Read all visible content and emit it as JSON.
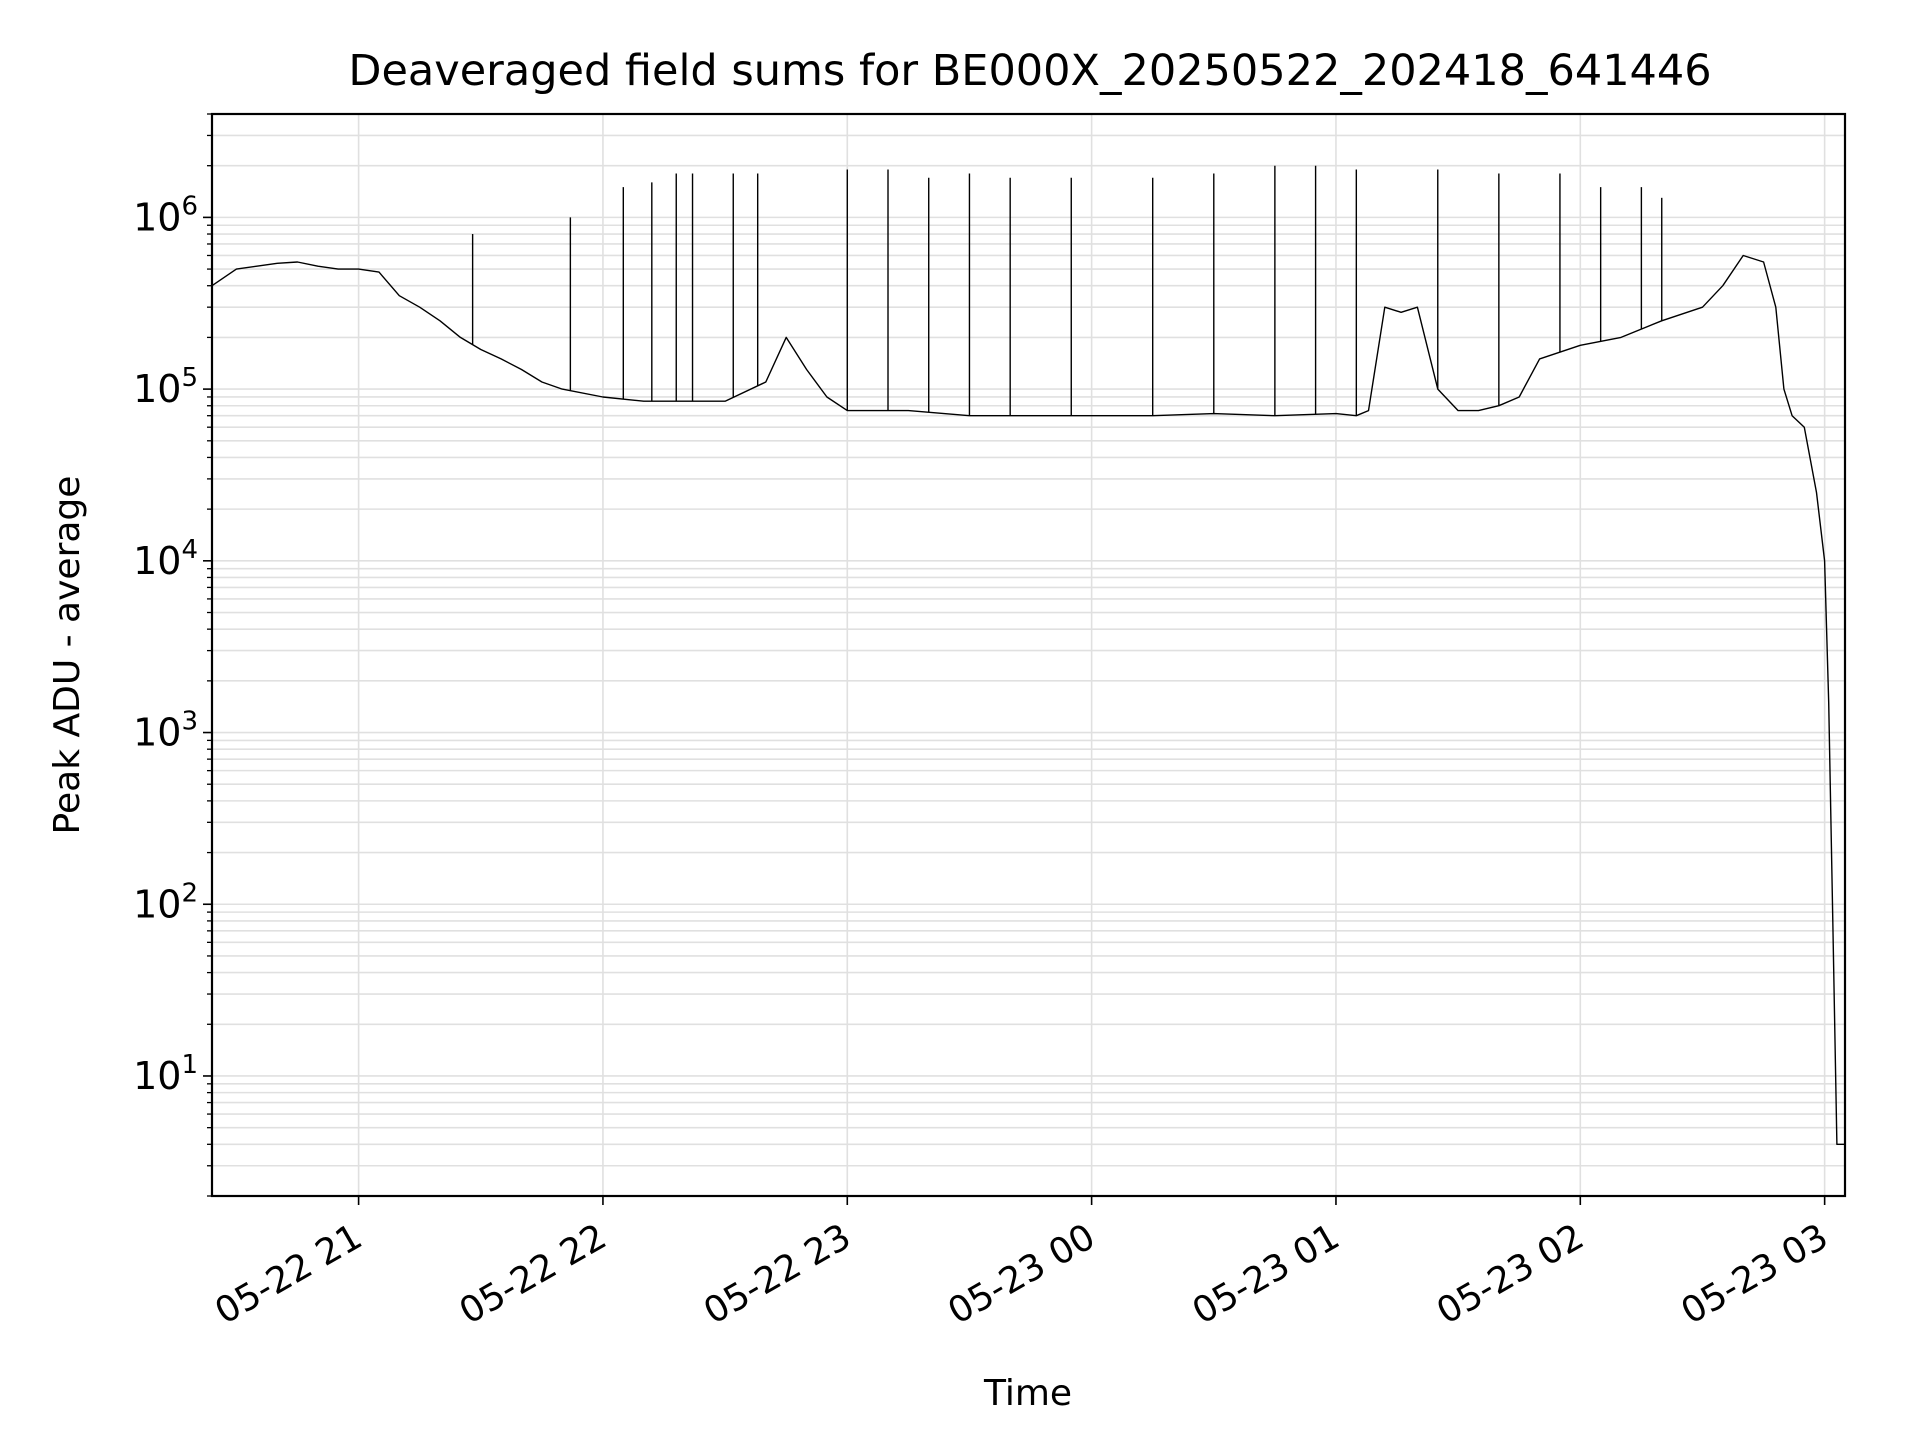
{
  "chart_data": {
    "type": "line",
    "title": "Deaveraged field sums for BE000X_20250522_202418_641446",
    "xlabel": "Time",
    "ylabel": "Peak ADU - average",
    "yscale": "log",
    "ylim": [
      2,
      4000000
    ],
    "xlim": [
      "2025-05-22 20:24",
      "2025-05-23 03:05"
    ],
    "grid": true,
    "line_color": "#000000",
    "grid_color": "#e0e0e0",
    "x_ticks": [
      {
        "time": "2025-05-22 21:00",
        "label": "05-22 21"
      },
      {
        "time": "2025-05-22 22:00",
        "label": "05-22 22"
      },
      {
        "time": "2025-05-22 23:00",
        "label": "05-22 23"
      },
      {
        "time": "2025-05-23 00:00",
        "label": "05-23 00"
      },
      {
        "time": "2025-05-23 01:00",
        "label": "05-23 01"
      },
      {
        "time": "2025-05-23 02:00",
        "label": "05-23 02"
      },
      {
        "time": "2025-05-23 03:00",
        "label": "05-23 03"
      }
    ],
    "y_ticks": [
      {
        "value": 10,
        "base": "10",
        "exp": "1"
      },
      {
        "value": 100,
        "base": "10",
        "exp": "2"
      },
      {
        "value": 1000,
        "base": "10",
        "exp": "3"
      },
      {
        "value": 10000,
        "base": "10",
        "exp": "4"
      },
      {
        "value": 100000,
        "base": "10",
        "exp": "5"
      },
      {
        "value": 1000000,
        "base": "10",
        "exp": "6"
      }
    ],
    "series": [
      {
        "x": [
          "2025-05-22 20:24",
          "2025-05-22 20:30",
          "2025-05-22 20:35",
          "2025-05-22 20:40",
          "2025-05-22 20:45",
          "2025-05-22 20:50",
          "2025-05-22 20:55",
          "2025-05-22 21:00",
          "2025-05-22 21:05",
          "2025-05-22 21:10",
          "2025-05-22 21:15",
          "2025-05-22 21:20",
          "2025-05-22 21:25",
          "2025-05-22 21:30",
          "2025-05-22 21:35",
          "2025-05-22 21:40",
          "2025-05-22 21:45",
          "2025-05-22 21:50",
          "2025-05-22 22:00",
          "2025-05-22 22:10",
          "2025-05-22 22:20",
          "2025-05-22 22:30",
          "2025-05-22 22:40",
          "2025-05-22 22:45",
          "2025-05-22 22:50",
          "2025-05-22 22:55",
          "2025-05-22 23:00",
          "2025-05-22 23:15",
          "2025-05-22 23:30",
          "2025-05-22 23:45",
          "2025-05-23 00:00",
          "2025-05-23 00:15",
          "2025-05-23 00:30",
          "2025-05-23 00:45",
          "2025-05-23 01:00",
          "2025-05-23 01:05",
          "2025-05-23 01:08",
          "2025-05-23 01:12",
          "2025-05-23 01:16",
          "2025-05-23 01:20",
          "2025-05-23 01:25",
          "2025-05-23 01:30",
          "2025-05-23 01:35",
          "2025-05-23 01:40",
          "2025-05-23 01:45",
          "2025-05-23 01:50",
          "2025-05-23 02:00",
          "2025-05-23 02:10",
          "2025-05-23 02:20",
          "2025-05-23 02:30",
          "2025-05-23 02:35",
          "2025-05-23 02:40",
          "2025-05-23 02:45",
          "2025-05-23 02:48",
          "2025-05-23 02:50",
          "2025-05-23 02:52",
          "2025-05-23 02:55",
          "2025-05-23 02:58",
          "2025-05-23 03:00",
          "2025-05-23 03:01",
          "2025-05-23 03:02",
          "2025-05-23 03:03",
          "2025-05-23 03:04",
          "2025-05-23 03:05"
        ],
        "y": [
          400000,
          500000,
          520000,
          540000,
          550000,
          520000,
          500000,
          500000,
          480000,
          350000,
          300000,
          250000,
          200000,
          170000,
          150000,
          130000,
          110000,
          100000,
          90000,
          85000,
          85000,
          85000,
          110000,
          200000,
          130000,
          90000,
          75000,
          75000,
          70000,
          70000,
          70000,
          70000,
          72000,
          70000,
          72000,
          70000,
          75000,
          300000,
          280000,
          300000,
          100000,
          75000,
          75000,
          80000,
          90000,
          150000,
          180000,
          200000,
          250000,
          300000,
          400000,
          600000,
          550000,
          300000,
          100000,
          70000,
          60000,
          25000,
          10000,
          1500,
          80,
          4,
          4,
          4
        ]
      }
    ],
    "spikes": [
      {
        "time": "2025-05-22 21:28",
        "value": 800000
      },
      {
        "time": "2025-05-22 21:52",
        "value": 1000000
      },
      {
        "time": "2025-05-22 22:05",
        "value": 1500000
      },
      {
        "time": "2025-05-22 22:12",
        "value": 1600000
      },
      {
        "time": "2025-05-22 22:18",
        "value": 1800000
      },
      {
        "time": "2025-05-22 22:22",
        "value": 1800000
      },
      {
        "time": "2025-05-22 22:32",
        "value": 1800000
      },
      {
        "time": "2025-05-22 22:38",
        "value": 1800000
      },
      {
        "time": "2025-05-22 23:00",
        "value": 1900000
      },
      {
        "time": "2025-05-22 23:10",
        "value": 1900000
      },
      {
        "time": "2025-05-22 23:20",
        "value": 1700000
      },
      {
        "time": "2025-05-22 23:30",
        "value": 1800000
      },
      {
        "time": "2025-05-22 23:40",
        "value": 1700000
      },
      {
        "time": "2025-05-22 23:55",
        "value": 1700000
      },
      {
        "time": "2025-05-23 00:15",
        "value": 1700000
      },
      {
        "time": "2025-05-23 00:30",
        "value": 1800000
      },
      {
        "time": "2025-05-23 00:45",
        "value": 2000000
      },
      {
        "time": "2025-05-23 00:55",
        "value": 2000000
      },
      {
        "time": "2025-05-23 01:05",
        "value": 1900000
      },
      {
        "time": "2025-05-23 01:25",
        "value": 1900000
      },
      {
        "time": "2025-05-23 01:40",
        "value": 1800000
      },
      {
        "time": "2025-05-23 01:55",
        "value": 1800000
      },
      {
        "time": "2025-05-23 02:05",
        "value": 1500000
      },
      {
        "time": "2025-05-23 02:15",
        "value": 1500000
      },
      {
        "time": "2025-05-23 02:20",
        "value": 1300000
      }
    ]
  }
}
